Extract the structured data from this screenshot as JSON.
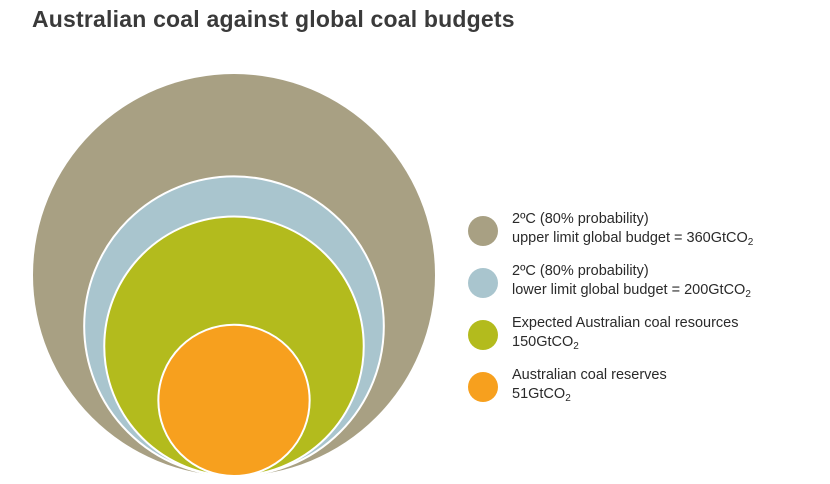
{
  "chart_data": {
    "type": "nested-circles",
    "title": "Australian coal against global coal budgets",
    "unit": "GtCO2",
    "items": [
      {
        "line1": "2ºC (80% probability)",
        "line2": "upper limit global budget = 360GtCO",
        "sub": "2",
        "value": 360,
        "color": "#a8a083"
      },
      {
        "line1": "2ºC (80% probability)",
        "line2": "lower limit global budget = 200GtCO",
        "sub": "2",
        "value": 200,
        "color": "#a9c5ce"
      },
      {
        "line1": "Expected Australian coal resources",
        "line2": "150GtCO",
        "sub": "2",
        "value": 150,
        "color": "#b3bb1d"
      },
      {
        "line1": "Australian coal reserves",
        "line2": "51GtCO",
        "sub": "2",
        "value": 51,
        "color": "#f7a01e"
      }
    ]
  }
}
